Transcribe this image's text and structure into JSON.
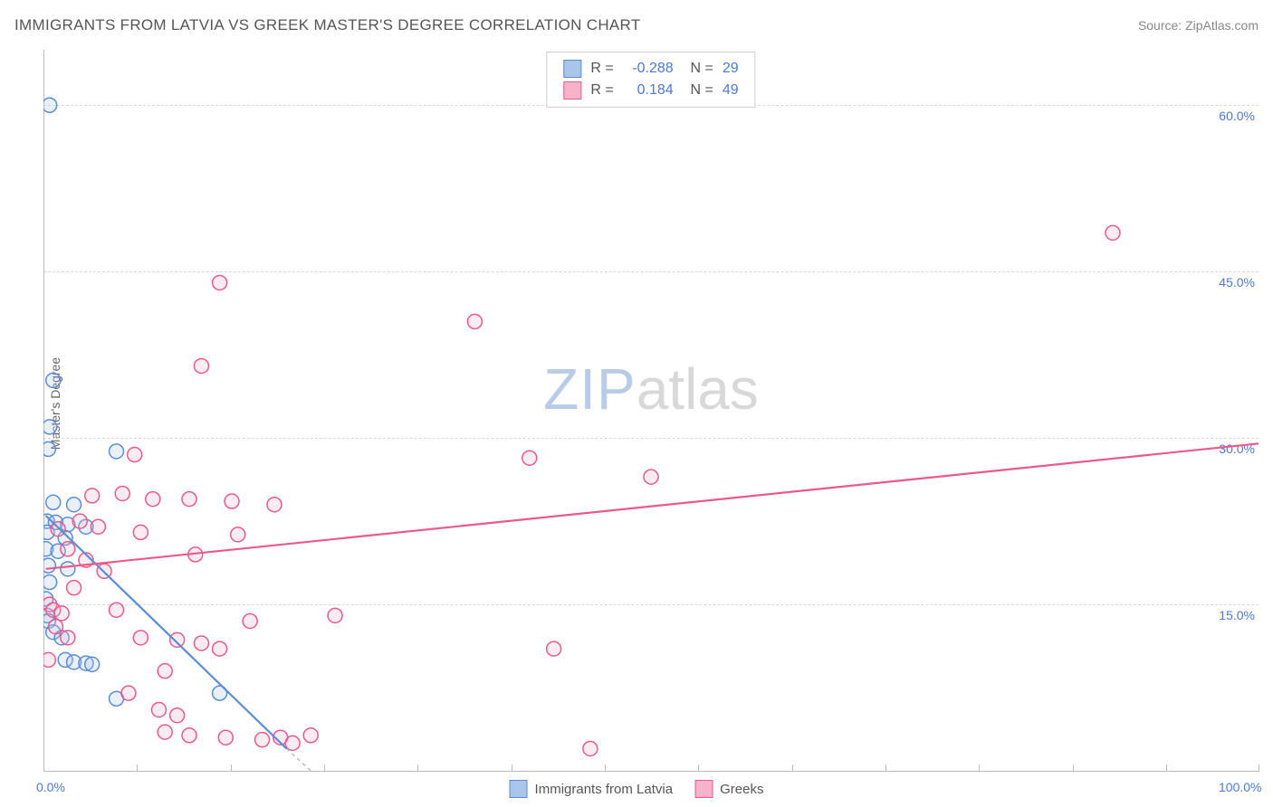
{
  "title": "IMMIGRANTS FROM LATVIA VS GREEK MASTER'S DEGREE CORRELATION CHART",
  "source": "Source: ZipAtlas.com",
  "watermark": {
    "part1": "ZIP",
    "part2": "atlas"
  },
  "chart": {
    "type": "scatter",
    "ylabel": "Master's Degree",
    "xlim": [
      0,
      100
    ],
    "ylim": [
      0,
      65
    ],
    "x_ticks": [
      0,
      100
    ],
    "x_tick_labels": [
      "0.0%",
      "100.0%"
    ],
    "x_minor_ticks": [
      0,
      7.7,
      15.4,
      23.1,
      30.8,
      38.5,
      46.2,
      53.9,
      61.6,
      69.3,
      77.0,
      84.7,
      92.4,
      100
    ],
    "y_ticks": [
      15,
      30,
      45,
      60
    ],
    "y_tick_labels": [
      "15.0%",
      "30.0%",
      "45.0%",
      "60.0%"
    ],
    "background_color": "#ffffff",
    "grid_color": "#d8d8d8",
    "axis_color": "#bbbbbb",
    "tick_label_color": "#4b7ad4",
    "tick_label_fontsize": 14,
    "title_fontsize": 17,
    "title_color": "#555555",
    "marker_radius": 8,
    "marker_stroke_width": 1.5,
    "marker_fill_opacity": 0.25,
    "line_width": 2.2,
    "series": [
      {
        "name": "Immigrants from Latvia",
        "color": "#5b8dd6",
        "fill": "#a9c5ea",
        "R": "-0.288",
        "N": "29",
        "regression": {
          "x1": 0.2,
          "y1": 23.0,
          "x2": 20.0,
          "y2": 2.0,
          "dash_tail": true,
          "dash_x2": 22.0,
          "dash_y2": 0.0
        },
        "points": [
          {
            "x": 0.5,
            "y": 60.0
          },
          {
            "x": 0.8,
            "y": 35.2
          },
          {
            "x": 0.5,
            "y": 31.0
          },
          {
            "x": 0.4,
            "y": 29.0
          },
          {
            "x": 6.0,
            "y": 28.8
          },
          {
            "x": 0.8,
            "y": 24.2
          },
          {
            "x": 2.5,
            "y": 24.0
          },
          {
            "x": 0.3,
            "y": 22.5
          },
          {
            "x": 1.0,
            "y": 22.4
          },
          {
            "x": 2.0,
            "y": 22.2
          },
          {
            "x": 3.5,
            "y": 22.0
          },
          {
            "x": 0.2,
            "y": 20.0
          },
          {
            "x": 1.2,
            "y": 19.8
          },
          {
            "x": 0.4,
            "y": 18.5
          },
          {
            "x": 2.0,
            "y": 18.2
          },
          {
            "x": 0.5,
            "y": 17.0
          },
          {
            "x": 0.2,
            "y": 15.5
          },
          {
            "x": 0.3,
            "y": 14.0
          },
          {
            "x": 0.4,
            "y": 13.5
          },
          {
            "x": 0.8,
            "y": 12.5
          },
          {
            "x": 1.5,
            "y": 12.0
          },
          {
            "x": 1.8,
            "y": 10.0
          },
          {
            "x": 2.5,
            "y": 9.8
          },
          {
            "x": 3.5,
            "y": 9.7
          },
          {
            "x": 4.0,
            "y": 9.6
          },
          {
            "x": 6.0,
            "y": 6.5
          },
          {
            "x": 14.5,
            "y": 7.0
          },
          {
            "x": 0.3,
            "y": 21.5
          },
          {
            "x": 1.8,
            "y": 21.0
          }
        ]
      },
      {
        "name": "Greeks",
        "color": "#e85a8a",
        "fill": "#f5b3c9",
        "R": "0.184",
        "N": "49",
        "regression": {
          "x1": 0.2,
          "y1": 18.2,
          "x2": 100.0,
          "y2": 29.5
        },
        "points": [
          {
            "x": 88.0,
            "y": 48.5
          },
          {
            "x": 14.5,
            "y": 44.0
          },
          {
            "x": 35.5,
            "y": 40.5
          },
          {
            "x": 13.0,
            "y": 36.5
          },
          {
            "x": 7.5,
            "y": 28.5
          },
          {
            "x": 40.0,
            "y": 28.2
          },
          {
            "x": 50.0,
            "y": 26.5
          },
          {
            "x": 6.5,
            "y": 25.0
          },
          {
            "x": 9.0,
            "y": 24.5
          },
          {
            "x": 12.0,
            "y": 24.5
          },
          {
            "x": 15.5,
            "y": 24.3
          },
          {
            "x": 19.0,
            "y": 24.0
          },
          {
            "x": 3.0,
            "y": 22.5
          },
          {
            "x": 4.5,
            "y": 22.0
          },
          {
            "x": 8.0,
            "y": 21.5
          },
          {
            "x": 16.0,
            "y": 21.3
          },
          {
            "x": 2.0,
            "y": 20.0
          },
          {
            "x": 12.5,
            "y": 19.5
          },
          {
            "x": 5.0,
            "y": 18.0
          },
          {
            "x": 2.5,
            "y": 16.5
          },
          {
            "x": 0.5,
            "y": 15.0
          },
          {
            "x": 0.8,
            "y": 14.5
          },
          {
            "x": 1.5,
            "y": 14.2
          },
          {
            "x": 24.0,
            "y": 14.0
          },
          {
            "x": 8.0,
            "y": 12.0
          },
          {
            "x": 11.0,
            "y": 11.8
          },
          {
            "x": 13.0,
            "y": 11.5
          },
          {
            "x": 14.5,
            "y": 11.0
          },
          {
            "x": 42.0,
            "y": 11.0
          },
          {
            "x": 0.4,
            "y": 10.0
          },
          {
            "x": 10.0,
            "y": 9.0
          },
          {
            "x": 7.0,
            "y": 7.0
          },
          {
            "x": 11.0,
            "y": 5.0
          },
          {
            "x": 10.0,
            "y": 3.5
          },
          {
            "x": 12.0,
            "y": 3.2
          },
          {
            "x": 15.0,
            "y": 3.0
          },
          {
            "x": 18.0,
            "y": 2.8
          },
          {
            "x": 19.5,
            "y": 3.0
          },
          {
            "x": 20.5,
            "y": 2.5
          },
          {
            "x": 22.0,
            "y": 3.2
          },
          {
            "x": 45.0,
            "y": 2.0
          },
          {
            "x": 3.5,
            "y": 19.0
          },
          {
            "x": 6.0,
            "y": 14.5
          },
          {
            "x": 4.0,
            "y": 24.8
          },
          {
            "x": 1.0,
            "y": 13.0
          },
          {
            "x": 2.0,
            "y": 12.0
          },
          {
            "x": 17.0,
            "y": 13.5
          },
          {
            "x": 9.5,
            "y": 5.5
          },
          {
            "x": 1.2,
            "y": 21.8
          }
        ]
      }
    ],
    "legend_bottom": [
      {
        "label": "Immigrants from Latvia",
        "swatch_fill": "#a9c5ea",
        "swatch_border": "#5b8dd6"
      },
      {
        "label": "Greeks",
        "swatch_fill": "#f5b3c9",
        "swatch_border": "#e85a8a"
      }
    ]
  }
}
